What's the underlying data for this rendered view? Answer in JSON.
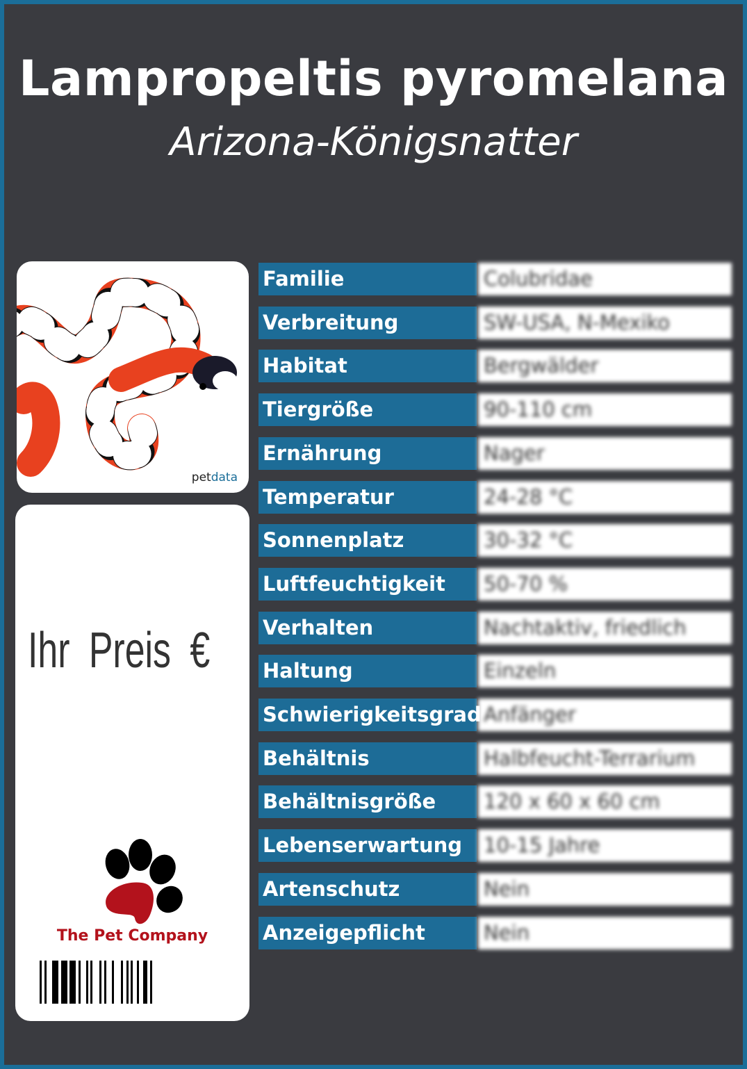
{
  "header": {
    "title": "Lampropeltis pyromelana",
    "subtitle": "Arizona-Königsnatter"
  },
  "photo": {
    "credit_prefix": "pet",
    "credit_suffix": "data"
  },
  "price": {
    "label": "Ihr Preis €"
  },
  "logo": {
    "name": "The Pet Company"
  },
  "colors": {
    "background": "#3a3b40",
    "border": "#1b6e99",
    "label_bg": "#1d6c97",
    "logo_red": "#b3121c"
  },
  "facts": [
    {
      "label": "Familie",
      "value": "Colubridae"
    },
    {
      "label": "Verbreitung",
      "value": "SW-USA, N-Mexiko"
    },
    {
      "label": "Habitat",
      "value": "Bergwälder"
    },
    {
      "label": "Tiergröße",
      "value": "90-110 cm"
    },
    {
      "label": "Ernährung",
      "value": "Nager"
    },
    {
      "label": "Temperatur",
      "value": "24-28 °C"
    },
    {
      "label": "Sonnenplatz",
      "value": "30-32 °C"
    },
    {
      "label": "Luftfeuchtigkeit",
      "value": "50-70 %"
    },
    {
      "label": "Verhalten",
      "value": "Nachtaktiv, friedlich"
    },
    {
      "label": "Haltung",
      "value": "Einzeln"
    },
    {
      "label": "Schwierigkeitsgrad",
      "value": "Anfänger"
    },
    {
      "label": "Behältnis",
      "value": "Halbfeucht-Terrarium"
    },
    {
      "label": "Behältnisgröße",
      "value": "120 x 60 x 60 cm"
    },
    {
      "label": "Lebenserwartung",
      "value": "10-15 Jahre"
    },
    {
      "label": "Artenschutz",
      "value": "Nein"
    },
    {
      "label": "Anzeigepflicht",
      "value": "Nein"
    }
  ]
}
